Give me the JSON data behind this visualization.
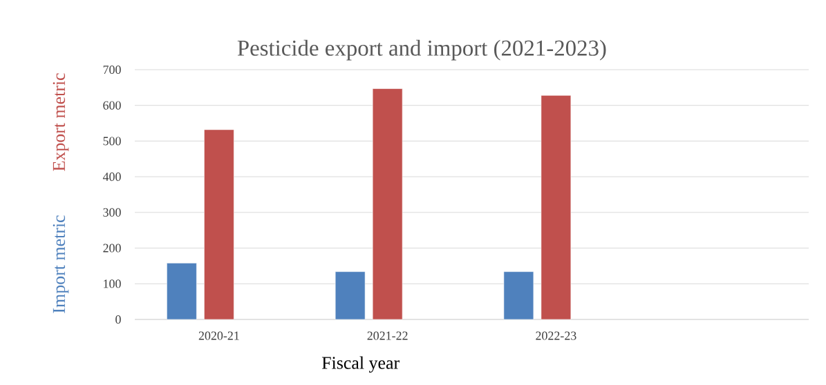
{
  "chart_data": {
    "type": "bar",
    "title": "Pesticide export and import (2021-2023)",
    "xlabel": "Fiscal year",
    "categories": [
      "2020-21",
      "2021-22",
      "2022-23",
      null
    ],
    "series": [
      {
        "name": "Import metric",
        "color": "#4f81bd",
        "values": [
          158,
          134,
          134,
          null
        ]
      },
      {
        "name": "Export metric",
        "color": "#c0504d",
        "values": [
          532,
          647,
          628,
          null
        ]
      }
    ],
    "ylim": [
      0,
      700
    ],
    "yticks": [
      0,
      100,
      200,
      300,
      400,
      500,
      600,
      700
    ],
    "grid": "y"
  }
}
